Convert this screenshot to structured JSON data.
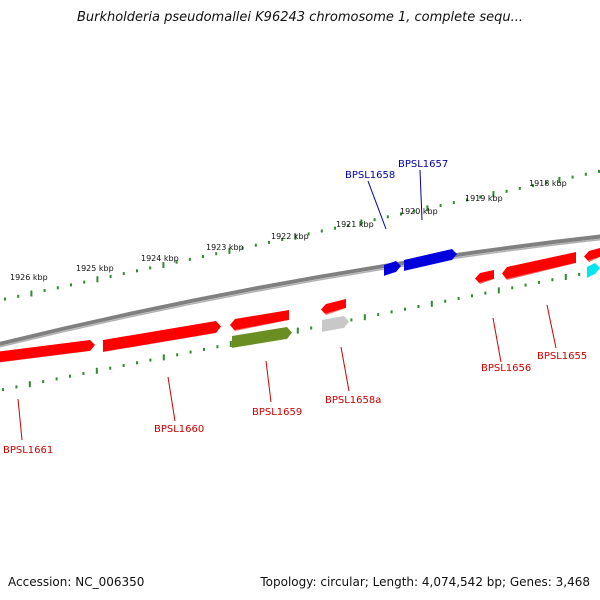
{
  "title": "Burkholderia pseudomallei K96243 chromosome 1, complete sequ...",
  "footer": {
    "accession": "Accession: NC_006350",
    "summary": "Topology: circular; Length: 4,074,542 bp; Genes: 3,468"
  },
  "colors": {
    "backbone": "#808080",
    "tick": "#2e8b2e",
    "forward_gene": "#ff0000",
    "reverse_gene": "#ff0000",
    "highlight_gene": "#0000dd",
    "rna_gene": "#6b8e23",
    "pseudo_gene": "#c8c8c8",
    "cyan_gene": "#00e5ee",
    "label_red": "#cc0000",
    "label_blue": "#0000aa"
  },
  "scale": {
    "labels": [
      "1926 kbp",
      "1925 kbp",
      "1924 kbp",
      "1923 kbp",
      "1922 kbp",
      "1921 kbp",
      "1920 kbp",
      "1919 kbp",
      "1918 kbp"
    ]
  },
  "genes": [
    {
      "label": "BPSL1661",
      "strand": "forward",
      "color": "red"
    },
    {
      "label": "BPSL1660",
      "strand": "forward",
      "color": "red"
    },
    {
      "label": "BPSL1659",
      "strand": "reverse",
      "color": "olive"
    },
    {
      "label": "BPSL1658a",
      "strand": "reverse",
      "color": "grey"
    },
    {
      "label": "BPSL1658",
      "strand": "forward",
      "color": "blue"
    },
    {
      "label": "BPSL1657",
      "strand": "forward",
      "color": "blue"
    },
    {
      "label": "BPSL1656",
      "strand": "forward",
      "color": "red"
    },
    {
      "label": "BPSL1655",
      "strand": "forward",
      "color": "red"
    }
  ]
}
